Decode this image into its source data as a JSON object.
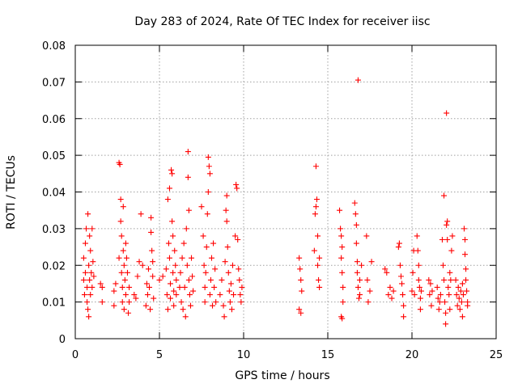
{
  "chart_data": {
    "type": "scatter",
    "title": "Day 283 of 2024, Rate Of TEC Index for receiver iisc",
    "xlabel": "GPS time / hours",
    "ylabel": "ROTI / TECUs",
    "xlim": [
      0,
      25
    ],
    "ylim": [
      0,
      0.08
    ],
    "xticks": [
      0,
      5,
      10,
      15,
      20,
      25
    ],
    "xtick_labels": [
      "0",
      "5",
      "10",
      "15",
      "20",
      "25"
    ],
    "yticks": [
      0,
      0.01,
      0.02,
      0.03,
      0.04,
      0.05,
      0.06,
      0.07,
      0.08
    ],
    "ytick_labels": [
      "0",
      "0.01",
      "0.02",
      "0.03",
      "0.04",
      "0.05",
      "0.06",
      "0.07",
      "0.08"
    ],
    "grid": true,
    "marker": "plus",
    "color": "#ff0000",
    "points": [
      [
        0.5,
        0.022
      ],
      [
        0.5,
        0.016
      ],
      [
        0.55,
        0.012
      ],
      [
        0.6,
        0.026
      ],
      [
        0.6,
        0.018
      ],
      [
        0.65,
        0.03
      ],
      [
        0.7,
        0.01
      ],
      [
        0.7,
        0.014
      ],
      [
        0.75,
        0.034
      ],
      [
        0.75,
        0.008
      ],
      [
        0.8,
        0.02
      ],
      [
        0.8,
        0.006
      ],
      [
        0.85,
        0.028
      ],
      [
        0.85,
        0.016
      ],
      [
        0.9,
        0.012
      ],
      [
        0.9,
        0.024
      ],
      [
        0.95,
        0.018
      ],
      [
        1.0,
        0.014
      ],
      [
        1.0,
        0.03
      ],
      [
        1.05,
        0.021
      ],
      [
        1.1,
        0.017
      ],
      [
        1.5,
        0.015
      ],
      [
        1.6,
        0.014
      ],
      [
        1.6,
        0.01
      ],
      [
        2.3,
        0.013
      ],
      [
        2.3,
        0.009
      ],
      [
        2.4,
        0.015
      ],
      [
        2.6,
        0.048
      ],
      [
        2.65,
        0.0475
      ],
      [
        2.6,
        0.022
      ],
      [
        2.7,
        0.038
      ],
      [
        2.7,
        0.032
      ],
      [
        2.75,
        0.028
      ],
      [
        2.75,
        0.018
      ],
      [
        2.8,
        0.014
      ],
      [
        2.8,
        0.01
      ],
      [
        2.85,
        0.024
      ],
      [
        2.85,
        0.036
      ],
      [
        2.9,
        0.02
      ],
      [
        2.9,
        0.008
      ],
      [
        2.95,
        0.016
      ],
      [
        3.0,
        0.012
      ],
      [
        3.0,
        0.026
      ],
      [
        3.05,
        0.022
      ],
      [
        3.1,
        0.018
      ],
      [
        3.15,
        0.007
      ],
      [
        3.2,
        0.014
      ],
      [
        3.2,
        0.01
      ],
      [
        3.5,
        0.012
      ],
      [
        3.6,
        0.011
      ],
      [
        3.7,
        0.017
      ],
      [
        3.8,
        0.021
      ],
      [
        3.9,
        0.034
      ],
      [
        4.0,
        0.02
      ],
      [
        4.2,
        0.009
      ],
      [
        4.25,
        0.015
      ],
      [
        4.3,
        0.012
      ],
      [
        4.35,
        0.019
      ],
      [
        4.4,
        0.014
      ],
      [
        4.45,
        0.008
      ],
      [
        4.5,
        0.033
      ],
      [
        4.5,
        0.029
      ],
      [
        4.55,
        0.024
      ],
      [
        4.6,
        0.021
      ],
      [
        4.6,
        0.017
      ],
      [
        4.65,
        0.011
      ],
      [
        5.0,
        0.016
      ],
      [
        5.2,
        0.017
      ],
      [
        5.4,
        0.019
      ],
      [
        5.45,
        0.012
      ],
      [
        5.5,
        0.038
      ],
      [
        5.5,
        0.008
      ],
      [
        5.55,
        0.026
      ],
      [
        5.6,
        0.022
      ],
      [
        5.6,
        0.041
      ],
      [
        5.65,
        0.015
      ],
      [
        5.65,
        0.011
      ],
      [
        5.7,
        0.046
      ],
      [
        5.75,
        0.045
      ],
      [
        5.75,
        0.032
      ],
      [
        5.8,
        0.028
      ],
      [
        5.8,
        0.018
      ],
      [
        5.85,
        0.013
      ],
      [
        5.85,
        0.009
      ],
      [
        5.9,
        0.024
      ],
      [
        5.95,
        0.02
      ],
      [
        6.0,
        0.016
      ],
      [
        6.0,
        0.012
      ],
      [
        6.2,
        0.014
      ],
      [
        6.25,
        0.018
      ],
      [
        6.3,
        0.01
      ],
      [
        6.35,
        0.022
      ],
      [
        6.4,
        0.008
      ],
      [
        6.45,
        0.026
      ],
      [
        6.5,
        0.014
      ],
      [
        6.55,
        0.006
      ],
      [
        6.6,
        0.03
      ],
      [
        6.65,
        0.02
      ],
      [
        6.7,
        0.051
      ],
      [
        6.7,
        0.044
      ],
      [
        6.75,
        0.035
      ],
      [
        6.75,
        0.016
      ],
      [
        6.8,
        0.012
      ],
      [
        6.85,
        0.009
      ],
      [
        6.9,
        0.022
      ],
      [
        6.95,
        0.017
      ],
      [
        7.0,
        0.013
      ],
      [
        7.5,
        0.036
      ],
      [
        7.6,
        0.028
      ],
      [
        7.65,
        0.02
      ],
      [
        7.7,
        0.014
      ],
      [
        7.7,
        0.01
      ],
      [
        7.75,
        0.018
      ],
      [
        7.8,
        0.025
      ],
      [
        7.85,
        0.034
      ],
      [
        7.9,
        0.04
      ],
      [
        7.9,
        0.0495
      ],
      [
        7.95,
        0.047
      ],
      [
        8.0,
        0.045
      ],
      [
        8.0,
        0.012
      ],
      [
        8.05,
        0.016
      ],
      [
        8.1,
        0.022
      ],
      [
        8.15,
        0.009
      ],
      [
        8.2,
        0.026
      ],
      [
        8.25,
        0.014
      ],
      [
        8.3,
        0.019
      ],
      [
        8.35,
        0.01
      ],
      [
        8.6,
        0.012
      ],
      [
        8.7,
        0.016
      ],
      [
        8.8,
        0.009
      ],
      [
        8.85,
        0.006
      ],
      [
        8.9,
        0.021
      ],
      [
        8.95,
        0.035
      ],
      [
        9.0,
        0.039
      ],
      [
        9.0,
        0.032
      ],
      [
        9.05,
        0.025
      ],
      [
        9.1,
        0.018
      ],
      [
        9.15,
        0.013
      ],
      [
        9.2,
        0.01
      ],
      [
        9.25,
        0.015
      ],
      [
        9.3,
        0.008
      ],
      [
        9.35,
        0.02
      ],
      [
        9.4,
        0.012
      ],
      [
        9.5,
        0.028
      ],
      [
        9.55,
        0.042
      ],
      [
        9.6,
        0.041
      ],
      [
        9.65,
        0.027
      ],
      [
        9.7,
        0.019
      ],
      [
        9.75,
        0.016
      ],
      [
        9.8,
        0.012
      ],
      [
        9.85,
        0.01
      ],
      [
        9.9,
        0.014
      ],
      [
        13.3,
        0.022
      ],
      [
        13.35,
        0.019
      ],
      [
        13.4,
        0.016
      ],
      [
        13.45,
        0.013
      ],
      [
        13.3,
        0.008
      ],
      [
        13.4,
        0.007
      ],
      [
        14.2,
        0.024
      ],
      [
        14.25,
        0.034
      ],
      [
        14.3,
        0.036
      ],
      [
        14.35,
        0.038
      ],
      [
        14.3,
        0.047
      ],
      [
        14.4,
        0.028
      ],
      [
        14.4,
        0.02
      ],
      [
        14.45,
        0.016
      ],
      [
        14.5,
        0.014
      ],
      [
        14.5,
        0.022
      ],
      [
        15.7,
        0.035
      ],
      [
        15.75,
        0.03
      ],
      [
        15.8,
        0.028
      ],
      [
        15.85,
        0.025
      ],
      [
        15.8,
        0.022
      ],
      [
        15.85,
        0.018
      ],
      [
        15.9,
        0.014
      ],
      [
        15.9,
        0.01
      ],
      [
        15.8,
        0.006
      ],
      [
        15.85,
        0.0055
      ],
      [
        16.6,
        0.037
      ],
      [
        16.65,
        0.034
      ],
      [
        16.7,
        0.031
      ],
      [
        16.7,
        0.026
      ],
      [
        16.75,
        0.021
      ],
      [
        16.75,
        0.018
      ],
      [
        16.8,
        0.0705
      ],
      [
        16.8,
        0.014
      ],
      [
        16.85,
        0.011
      ],
      [
        16.9,
        0.012
      ],
      [
        16.9,
        0.016
      ],
      [
        17.0,
        0.02
      ],
      [
        17.3,
        0.028
      ],
      [
        17.35,
        0.016
      ],
      [
        17.4,
        0.01
      ],
      [
        17.5,
        0.013
      ],
      [
        17.6,
        0.021
      ],
      [
        18.4,
        0.019
      ],
      [
        18.5,
        0.018
      ],
      [
        18.6,
        0.012
      ],
      [
        18.7,
        0.014
      ],
      [
        18.8,
        0.011
      ],
      [
        18.9,
        0.013
      ],
      [
        19.2,
        0.025
      ],
      [
        19.25,
        0.026
      ],
      [
        19.3,
        0.02
      ],
      [
        19.35,
        0.017
      ],
      [
        19.4,
        0.015
      ],
      [
        19.45,
        0.012
      ],
      [
        19.5,
        0.009
      ],
      [
        19.5,
        0.006
      ],
      [
        20.0,
        0.013
      ],
      [
        20.05,
        0.018
      ],
      [
        20.1,
        0.024
      ],
      [
        20.15,
        0.012
      ],
      [
        20.3,
        0.028
      ],
      [
        20.35,
        0.024
      ],
      [
        20.4,
        0.02
      ],
      [
        20.4,
        0.016
      ],
      [
        20.45,
        0.014
      ],
      [
        20.5,
        0.011
      ],
      [
        20.5,
        0.008
      ],
      [
        20.55,
        0.013
      ],
      [
        21.0,
        0.016
      ],
      [
        21.05,
        0.012
      ],
      [
        21.1,
        0.015
      ],
      [
        21.15,
        0.009
      ],
      [
        21.2,
        0.013
      ],
      [
        21.5,
        0.014
      ],
      [
        21.55,
        0.011
      ],
      [
        21.6,
        0.008
      ],
      [
        21.65,
        0.01
      ],
      [
        21.7,
        0.012
      ],
      [
        21.8,
        0.027
      ],
      [
        21.85,
        0.02
      ],
      [
        21.9,
        0.039
      ],
      [
        21.9,
        0.016
      ],
      [
        21.95,
        0.01
      ],
      [
        22.0,
        0.007
      ],
      [
        22.0,
        0.004
      ],
      [
        22.05,
        0.0615
      ],
      [
        22.05,
        0.031
      ],
      [
        22.1,
        0.032
      ],
      [
        22.1,
        0.027
      ],
      [
        22.15,
        0.014
      ],
      [
        22.2,
        0.012
      ],
      [
        22.25,
        0.018
      ],
      [
        22.25,
        0.008
      ],
      [
        22.3,
        0.016
      ],
      [
        22.35,
        0.024
      ],
      [
        22.4,
        0.028
      ],
      [
        22.6,
        0.016
      ],
      [
        22.65,
        0.012
      ],
      [
        22.7,
        0.009
      ],
      [
        22.75,
        0.014
      ],
      [
        22.8,
        0.011
      ],
      [
        22.85,
        0.008
      ],
      [
        22.9,
        0.013
      ],
      [
        22.95,
        0.01
      ],
      [
        23.0,
        0.015
      ],
      [
        23.0,
        0.006
      ],
      [
        23.05,
        0.012
      ],
      [
        23.1,
        0.03
      ],
      [
        23.15,
        0.027
      ],
      [
        23.15,
        0.023
      ],
      [
        23.2,
        0.019
      ],
      [
        23.2,
        0.016
      ],
      [
        23.25,
        0.013
      ],
      [
        23.3,
        0.01
      ],
      [
        23.3,
        0.009
      ]
    ]
  }
}
